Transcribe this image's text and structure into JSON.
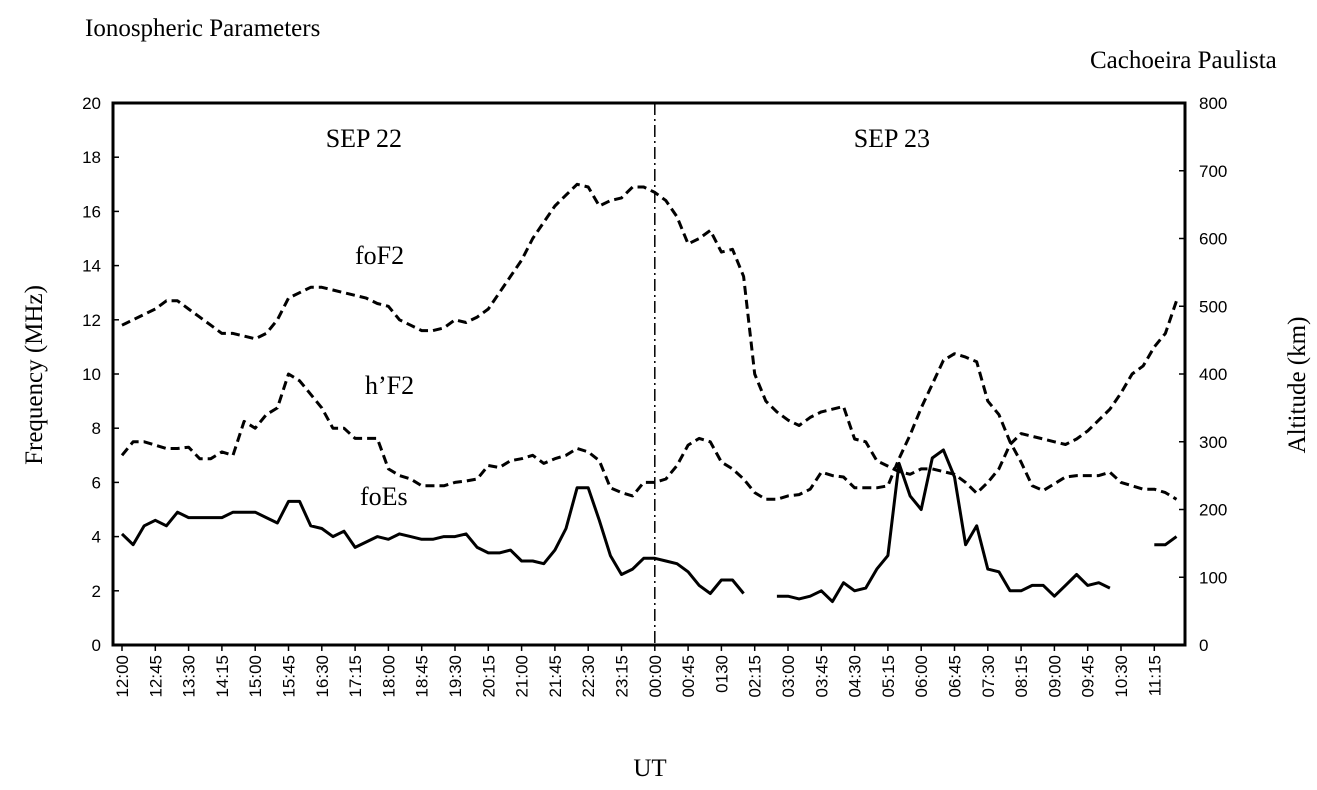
{
  "chart_data": {
    "type": "line",
    "title": "Ionospheric Parameters",
    "subtitle": "Cachoeira Paulista",
    "x_label": "UT",
    "y_label": "Frequency (MHz)",
    "y2_label": "Altitude (km)",
    "annotations": [
      "SEP 22",
      "SEP 23"
    ],
    "categories": [
      "12:00",
      null,
      null,
      "12:45",
      null,
      null,
      "13:30",
      null,
      null,
      "14:15",
      null,
      null,
      "15:00",
      null,
      null,
      "15:45",
      null,
      null,
      "16:30",
      null,
      null,
      "17:15",
      null,
      null,
      "18:00",
      null,
      null,
      "18:45",
      null,
      null,
      "19:30",
      null,
      null,
      "20:15",
      null,
      null,
      "21:00",
      null,
      null,
      "21:45",
      null,
      null,
      "22:30",
      null,
      null,
      "23:15",
      null,
      null,
      "00:00",
      null,
      null,
      "00:45",
      null,
      null,
      "0130",
      null,
      null,
      "02:15",
      null,
      null,
      "03:00",
      null,
      null,
      "03:45",
      null,
      null,
      "04:30",
      null,
      null,
      "05:15",
      null,
      null,
      "06:00",
      null,
      null,
      "06:45",
      null,
      null,
      "07:30",
      null,
      null,
      "08:15",
      null,
      null,
      "09:00",
      null,
      null,
      "09:45",
      null,
      null,
      "10:30",
      null,
      null,
      "11:15",
      null,
      null
    ],
    "ylim": [
      0,
      20
    ],
    "yticks": [
      0,
      2,
      4,
      6,
      8,
      10,
      12,
      14,
      16,
      18,
      20
    ],
    "y2lim": [
      0,
      800
    ],
    "y2ticks": [
      0,
      100,
      200,
      300,
      400,
      500,
      600,
      700,
      800
    ],
    "grid": false,
    "series": [
      {
        "name": "foF2",
        "color": "#000000",
        "style": "dashed",
        "values": [
          11.8,
          12.0,
          12.2,
          12.4,
          12.7,
          12.7,
          12.4,
          12.1,
          11.8,
          11.5,
          11.5,
          11.4,
          11.3,
          11.5,
          12.0,
          12.8,
          13.0,
          13.2,
          13.2,
          13.1,
          13.0,
          12.9,
          12.8,
          12.6,
          12.5,
          12.0,
          11.8,
          11.6,
          11.6,
          11.7,
          12.0,
          11.9,
          12.1,
          12.4,
          13.0,
          13.6,
          14.2,
          15.0,
          15.6,
          16.2,
          16.6,
          17.0,
          16.9,
          16.2,
          16.4,
          16.5,
          16.9,
          16.9,
          16.7,
          16.4,
          15.8,
          14.8,
          15.0,
          15.3,
          14.5,
          14.6,
          13.6,
          10.0,
          9.0,
          8.6,
          8.3,
          8.1,
          8.4,
          8.6,
          8.7,
          8.8,
          7.6,
          7.5,
          6.8,
          6.6,
          6.4,
          6.3,
          6.5,
          6.5,
          6.4,
          6.3,
          6.0,
          5.6,
          6.0,
          6.5,
          7.4,
          7.8,
          7.7,
          7.6,
          7.5,
          7.4,
          7.6,
          7.9,
          8.3,
          8.7,
          9.3,
          10.0,
          10.3,
          11.0,
          11.5,
          12.7
        ]
      },
      {
        "name": "h’F2",
        "color": "#000000",
        "style": "dashed",
        "axis": "y2",
        "values": [
          280,
          300,
          300,
          295,
          290,
          290,
          292,
          275,
          275,
          285,
          280,
          330,
          320,
          340,
          350,
          400,
          390,
          370,
          350,
          320,
          320,
          305,
          305,
          305,
          260,
          250,
          245,
          235,
          235,
          235,
          240,
          242,
          245,
          265,
          262,
          272,
          275,
          280,
          268,
          275,
          280,
          290,
          285,
          272,
          232,
          225,
          220,
          240,
          240,
          245,
          265,
          295,
          305,
          300,
          270,
          260,
          245,
          225,
          215,
          215,
          220,
          222,
          230,
          255,
          250,
          248,
          232,
          232,
          232,
          235,
          275,
          310,
          350,
          385,
          420,
          430,
          425,
          418,
          360,
          340,
          300,
          270,
          235,
          228,
          238,
          248,
          250,
          250,
          250,
          255,
          240,
          235,
          230,
          230,
          225,
          215
        ]
      },
      {
        "name": "foEs",
        "color": "#000000",
        "style": "solid",
        "values": [
          4.1,
          3.7,
          4.4,
          4.6,
          4.4,
          4.9,
          4.7,
          4.7,
          4.7,
          4.7,
          4.9,
          4.9,
          4.9,
          4.7,
          4.5,
          5.3,
          5.3,
          4.4,
          4.3,
          4.0,
          4.2,
          3.6,
          3.8,
          4.0,
          3.9,
          4.1,
          4.0,
          3.9,
          3.9,
          4.0,
          4.0,
          4.1,
          3.6,
          3.4,
          3.4,
          3.5,
          3.1,
          3.1,
          3.0,
          3.5,
          4.3,
          5.8,
          5.8,
          4.6,
          3.3,
          2.6,
          2.8,
          3.2,
          3.2,
          3.1,
          3.0,
          2.7,
          2.2,
          1.9,
          2.4,
          2.4,
          1.9,
          null,
          null,
          1.8,
          1.8,
          1.7,
          1.8,
          2.0,
          1.6,
          2.3,
          2.0,
          2.1,
          2.8,
          3.3,
          6.7,
          5.5,
          5.0,
          6.9,
          7.2,
          6.2,
          3.7,
          4.4,
          2.8,
          2.7,
          2.0,
          2.0,
          2.2,
          2.2,
          1.8,
          2.2,
          2.6,
          2.2,
          2.3,
          2.1,
          null,
          null,
          null,
          3.7,
          3.7,
          4.0
        ]
      }
    ]
  }
}
